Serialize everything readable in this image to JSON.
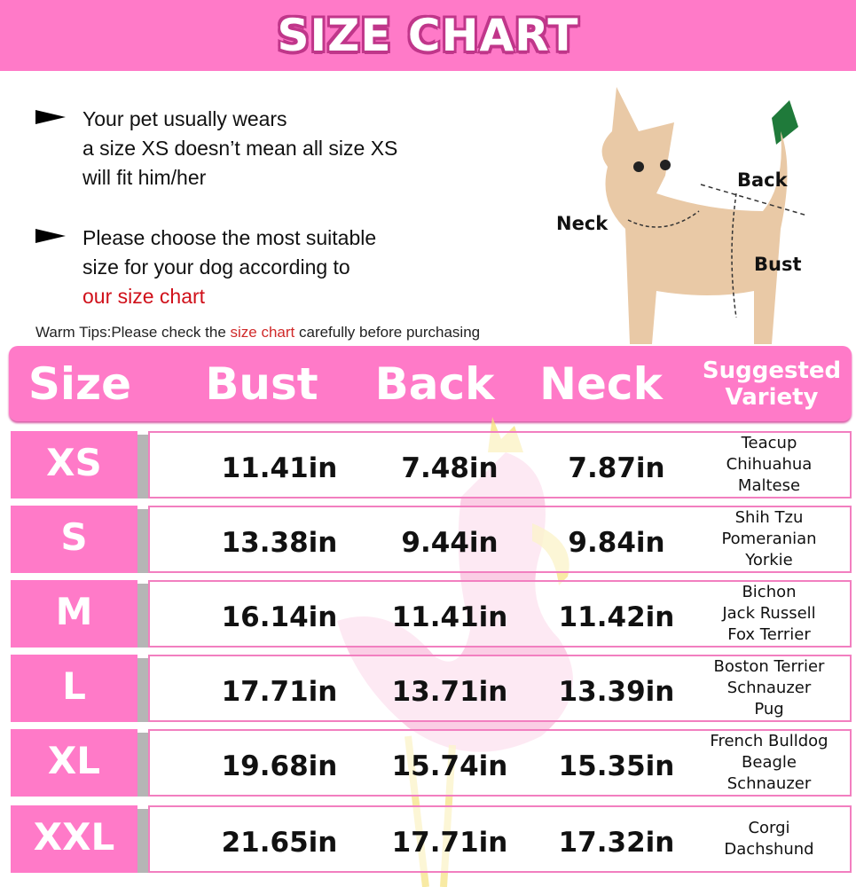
{
  "header": {
    "title": "SIZE CHART"
  },
  "notes": [
    {
      "lines": [
        "Your pet usually wears",
        "a size XS doesn’t mean all size XS",
        "will fit him/her"
      ]
    },
    {
      "lines": [
        "Please choose the most suitable",
        "size for your dog according to"
      ],
      "highlight": "our size chart"
    }
  ],
  "tips": {
    "prefix": "Warm Tips:Please check the ",
    "highlight": "size chart",
    "suffix": " carefully before purchasing"
  },
  "diagram": {
    "neck": "Neck",
    "back": "Back",
    "bust": "Bust"
  },
  "table": {
    "headers": {
      "size": "Size",
      "bust": "Bust",
      "back": "Back",
      "neck": "Neck",
      "variety_1": "Suggested",
      "variety_2": "Variety"
    },
    "rows": [
      {
        "size": "XS",
        "bust": "11.41in",
        "back": "7.48in",
        "neck": "7.87in",
        "variety": [
          "Teacup",
          "Chihuahua",
          "Maltese"
        ]
      },
      {
        "size": "S",
        "bust": "13.38in",
        "back": "9.44in",
        "neck": "9.84in",
        "variety": [
          "Shih Tzu",
          "Pomeranian",
          "Yorkie"
        ]
      },
      {
        "size": "M",
        "bust": "16.14in",
        "back": "11.41in",
        "neck": "11.42in",
        "variety": [
          "Bichon",
          "Jack Russell",
          "Fox Terrier"
        ]
      },
      {
        "size": "L",
        "bust": "17.71in",
        "back": "13.71in",
        "neck": "13.39in",
        "variety": [
          "Boston Terrier",
          "Schnauzer",
          "Pug"
        ]
      },
      {
        "size": "XL",
        "bust": "19.68in",
        "back": "15.74in",
        "neck": "15.35in",
        "variety": [
          "French Bulldog",
          "Beagle",
          "Schnauzer"
        ]
      },
      {
        "size": "XXL",
        "bust": "21.65in",
        "back": "17.71in",
        "neck": "17.32in",
        "variety": [
          "Corgi",
          "Dachshund"
        ]
      }
    ]
  },
  "colors": {
    "accent": "#ff7ac8",
    "highlight": "#d0101a",
    "shadow": "#b5b5b5"
  }
}
